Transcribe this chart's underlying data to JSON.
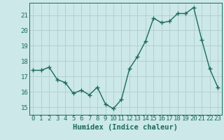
{
  "x": [
    0,
    1,
    2,
    3,
    4,
    5,
    6,
    7,
    8,
    9,
    10,
    11,
    12,
    13,
    14,
    15,
    16,
    17,
    18,
    19,
    20,
    21,
    22,
    23
  ],
  "y": [
    17.4,
    17.4,
    17.6,
    16.8,
    16.6,
    15.9,
    16.1,
    15.8,
    16.3,
    15.2,
    14.9,
    15.5,
    17.5,
    18.3,
    19.3,
    20.8,
    20.5,
    20.6,
    21.1,
    21.1,
    21.5,
    19.4,
    17.5,
    16.3
  ],
  "line_color": "#1a6b5a",
  "marker": "+",
  "marker_size": 4,
  "linewidth": 1.0,
  "bg_color": "#cce8e8",
  "grid_color": "#b0cccc",
  "tick_color": "#1a6b5a",
  "xlabel": "Humidex (Indice chaleur)",
  "xlim": [
    -0.5,
    23.5
  ],
  "ylim": [
    14.5,
    21.8
  ],
  "yticks": [
    15,
    16,
    17,
    18,
    19,
    20,
    21
  ],
  "xticks": [
    0,
    1,
    2,
    3,
    4,
    5,
    6,
    7,
    8,
    9,
    10,
    11,
    12,
    13,
    14,
    15,
    16,
    17,
    18,
    19,
    20,
    21,
    22,
    23
  ],
  "xlabel_fontsize": 7.5,
  "tick_fontsize": 6.5
}
